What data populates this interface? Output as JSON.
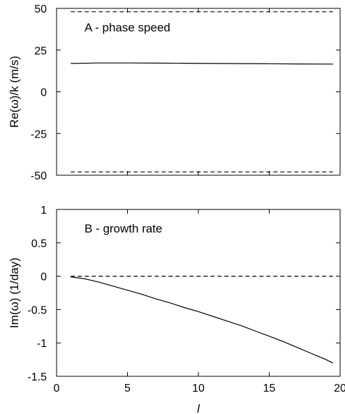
{
  "chart_data": [
    {
      "type": "line",
      "title": "A - phase speed",
      "xlabel": "",
      "ylabel": "Re(ω)/k (m/s)",
      "xlim": [
        0,
        20
      ],
      "ylim": [
        -50,
        50
      ],
      "xticks": [
        0,
        5,
        10,
        15,
        20
      ],
      "xtick_labels": [],
      "yticks": [
        -50,
        -25,
        0,
        25,
        50
      ],
      "ytick_labels": [
        "-50",
        "-25",
        "0",
        "25",
        "50"
      ],
      "grid": false,
      "series": [
        {
          "style": "solid",
          "x": [
            1,
            3,
            5,
            7,
            9,
            11,
            13,
            15,
            17,
            19.5
          ],
          "y": [
            17.0,
            17.3,
            17.3,
            17.2,
            17.1,
            17.0,
            16.9,
            16.8,
            16.7,
            16.6
          ]
        },
        {
          "style": "dashed",
          "x": [
            1,
            19.5
          ],
          "y": [
            48,
            48
          ]
        },
        {
          "style": "dashed",
          "x": [
            1,
            19.5
          ],
          "y": [
            -48,
            -48
          ]
        }
      ]
    },
    {
      "type": "line",
      "title": "B - growth rate",
      "xlabel": "l",
      "ylabel": "Im(ω) (1/day)",
      "xlim": [
        0,
        20
      ],
      "ylim": [
        -1.5,
        1
      ],
      "xticks": [
        0,
        5,
        10,
        15,
        20
      ],
      "xtick_labels": [
        "0",
        "5",
        "10",
        "15",
        "20"
      ],
      "yticks": [
        -1.5,
        -1,
        -0.5,
        0,
        0.5,
        1
      ],
      "ytick_labels": [
        "-1.5",
        "-1",
        "-0.5",
        "0",
        "0.5",
        "1"
      ],
      "grid": false,
      "series": [
        {
          "style": "solid",
          "x": [
            1,
            2,
            3,
            4,
            5,
            6,
            7,
            8,
            9,
            10,
            11,
            12,
            13,
            14,
            15,
            16,
            17,
            18,
            19,
            19.5
          ],
          "y": [
            -0.01,
            -0.04,
            -0.09,
            -0.15,
            -0.21,
            -0.27,
            -0.34,
            -0.4,
            -0.47,
            -0.53,
            -0.6,
            -0.67,
            -0.74,
            -0.82,
            -0.9,
            -0.98,
            -1.07,
            -1.16,
            -1.25,
            -1.3
          ]
        },
        {
          "style": "dashed",
          "x": [
            1,
            19.5
          ],
          "y": [
            0,
            0
          ]
        }
      ]
    }
  ]
}
